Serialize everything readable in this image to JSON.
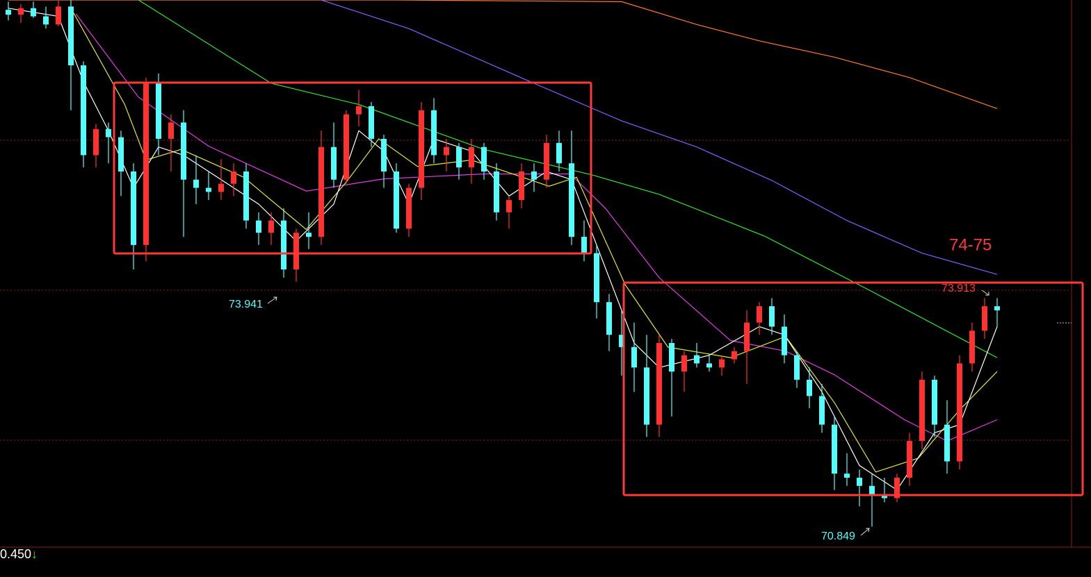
{
  "chart_data": {
    "type": "candlestick",
    "ylim": [
      70.6,
      77.3
    ],
    "up_color": "#ff3232",
    "down_color": "#54fcfc",
    "open": [
      77.18,
      77.12,
      77.2,
      77.1,
      77.0,
      77.22,
      76.5,
      75.4,
      75.72,
      75.62,
      75.2,
      74.3,
      76.3,
      75.6,
      75.8,
      75.1,
      75.0,
      74.95,
      75.05,
      75.2,
      74.6,
      74.45,
      74.6,
      74.0,
      74.45,
      74.4,
      75.5,
      75.1,
      75.9,
      76.0,
      75.6,
      75.2,
      74.5,
      75.0,
      75.95,
      75.4,
      75.5,
      75.25,
      75.5,
      75.2,
      74.7,
      74.85,
      75.2,
      75.1,
      75.55,
      75.3,
      74.4,
      74.2,
      73.6,
      73.2,
      73.05,
      72.8,
      72.1,
      73.1,
      72.75,
      72.95,
      72.85,
      72.8,
      72.9,
      73.0,
      73.35,
      73.55,
      73.3,
      72.95,
      72.65,
      72.45,
      72.1,
      71.5,
      71.45,
      71.35,
      71.25,
      71.2,
      71.45,
      71.9,
      72.65,
      72.1,
      71.65,
      72.85,
      73.25,
      73.55
    ],
    "high": [
      77.28,
      77.25,
      77.28,
      77.22,
      77.3,
      77.3,
      76.55,
      75.78,
      75.8,
      75.7,
      75.3,
      76.35,
      76.4,
      75.9,
      75.95,
      75.4,
      75.2,
      75.35,
      75.3,
      75.3,
      74.7,
      74.7,
      74.75,
      74.5,
      74.7,
      75.7,
      75.8,
      75.95,
      76.2,
      76.05,
      75.65,
      75.3,
      75.05,
      76.05,
      76.1,
      75.6,
      75.55,
      75.6,
      75.55,
      75.3,
      74.9,
      75.3,
      75.3,
      75.65,
      75.7,
      75.7,
      74.6,
      74.3,
      73.7,
      73.5,
      73.35,
      73.2,
      73.2,
      73.15,
      73.0,
      73.1,
      72.95,
      72.95,
      73.05,
      73.5,
      73.6,
      73.65,
      73.45,
      73.0,
      72.8,
      72.6,
      72.2,
      71.75,
      71.55,
      71.5,
      71.45,
      71.5,
      72.0,
      72.75,
      72.7,
      72.4,
      72.95,
      73.35,
      73.65,
      73.65
    ],
    "low": [
      77.05,
      77.02,
      77.08,
      76.95,
      76.98,
      75.95,
      75.25,
      75.25,
      75.3,
      74.9,
      74.0,
      74.1,
      75.4,
      75.2,
      74.4,
      74.8,
      74.85,
      74.85,
      74.9,
      74.5,
      74.3,
      74.3,
      73.9,
      73.85,
      74.25,
      74.3,
      75.0,
      75.05,
      75.75,
      75.5,
      75.0,
      74.45,
      74.4,
      74.85,
      75.3,
      75.2,
      75.1,
      75.05,
      75.1,
      74.6,
      74.5,
      74.75,
      74.95,
      75.0,
      75.2,
      74.3,
      74.1,
      73.4,
      73.0,
      72.7,
      72.5,
      71.95,
      71.95,
      72.2,
      72.5,
      72.8,
      72.75,
      72.7,
      72.85,
      72.6,
      73.2,
      73.2,
      72.85,
      72.55,
      72.3,
      72.0,
      71.3,
      71.35,
      71.1,
      70.85,
      71.15,
      71.15,
      71.35,
      71.8,
      71.95,
      71.5,
      71.55,
      72.75,
      73.15,
      73.3
    ],
    "close": [
      77.12,
      77.2,
      77.1,
      77.0,
      77.22,
      76.5,
      75.4,
      75.72,
      75.62,
      75.2,
      74.3,
      76.3,
      75.6,
      75.8,
      75.1,
      75.0,
      74.95,
      75.05,
      75.2,
      74.6,
      74.45,
      74.6,
      74.0,
      74.45,
      74.4,
      75.5,
      75.1,
      75.9,
      76.0,
      75.6,
      75.2,
      74.5,
      75.0,
      75.95,
      75.4,
      75.5,
      75.25,
      75.5,
      75.2,
      74.7,
      74.85,
      75.2,
      75.1,
      75.55,
      75.3,
      74.4,
      74.2,
      73.6,
      73.2,
      73.05,
      72.8,
      72.1,
      73.1,
      72.75,
      72.95,
      72.85,
      72.8,
      72.9,
      73.0,
      73.35,
      73.55,
      73.3,
      72.95,
      72.65,
      72.45,
      72.1,
      71.5,
      71.45,
      71.35,
      71.25,
      71.2,
      71.45,
      71.9,
      72.65,
      72.1,
      71.65,
      72.85,
      73.25,
      73.55,
      73.5
    ],
    "lines": [
      {
        "color": "#ff7a2a",
        "x": [
          0,
          22,
          31,
          49,
          55,
          60,
          66,
          72,
          79
        ],
        "values": [
          77.3,
          77.3,
          77.3,
          77.28,
          77.0,
          76.8,
          76.6,
          76.35,
          75.97
        ]
      },
      {
        "color": "#8a5cff",
        "x": [
          25,
          32,
          42,
          49,
          55,
          61,
          67,
          73,
          79
        ],
        "values": [
          77.3,
          76.95,
          76.28,
          75.82,
          75.5,
          75.09,
          74.6,
          74.2,
          73.94
        ]
      },
      {
        "color": "#2ee82e",
        "x": [
          10.4,
          21,
          28,
          38,
          46.6,
          52,
          60.4,
          69,
          79
        ],
        "values": [
          77.3,
          76.28,
          76.02,
          75.47,
          75.16,
          74.92,
          74.41,
          73.73,
          72.92
        ]
      },
      {
        "color": "#e63ce6",
        "x": [
          5.4,
          10.4,
          16,
          23.8,
          30,
          38,
          44.9,
          47.7,
          52,
          57.7,
          62.1,
          66,
          71.6,
          75,
          79
        ],
        "values": [
          77.13,
          76.11,
          75.51,
          74.96,
          75.11,
          75.17,
          75.17,
          74.75,
          73.9,
          73.13,
          73.0,
          72.71,
          72.16,
          71.9,
          72.16
        ]
      },
      {
        "color": "#e6e62a",
        "x": [
          5,
          9.3,
          11,
          13.8,
          18.8,
          23.8,
          27.1,
          29.6,
          32.7,
          37,
          43.2,
          45.4,
          49.3,
          52.7,
          57.7,
          62.1,
          66,
          69.3,
          72.7,
          76,
          79
        ],
        "values": [
          77.2,
          76.02,
          75.34,
          75.47,
          75.13,
          74.49,
          75.09,
          75.6,
          75.26,
          75.34,
          75.02,
          75.13,
          73.81,
          73.05,
          72.92,
          73.18,
          72.37,
          71.52,
          71.69,
          72.28,
          72.75
        ]
      },
      {
        "color": "#ffffff",
        "x": [
          0,
          4,
          6,
          8,
          10,
          12,
          14,
          17,
          20,
          23,
          26,
          28,
          30,
          32,
          34,
          37,
          40,
          43,
          45,
          47,
          50,
          52,
          56,
          60,
          62,
          65,
          68,
          71,
          74,
          76,
          79
        ],
        "values": [
          77.2,
          77.1,
          76.3,
          75.7,
          75.0,
          75.5,
          75.4,
          75.1,
          74.8,
          74.35,
          74.8,
          75.7,
          75.45,
          74.8,
          75.6,
          75.45,
          74.9,
          75.2,
          75.1,
          74.3,
          73.1,
          72.8,
          72.95,
          73.3,
          73.2,
          72.5,
          71.6,
          71.3,
          72.0,
          72.1,
          73.3
        ]
      }
    ],
    "annotations": [
      {
        "text": "73.941"
      },
      {
        "text": "70.849"
      },
      {
        "text": "73.913"
      },
      {
        "text": "74-75"
      }
    ],
    "footer_value": "0.450",
    "footer_arrow": "↓"
  }
}
